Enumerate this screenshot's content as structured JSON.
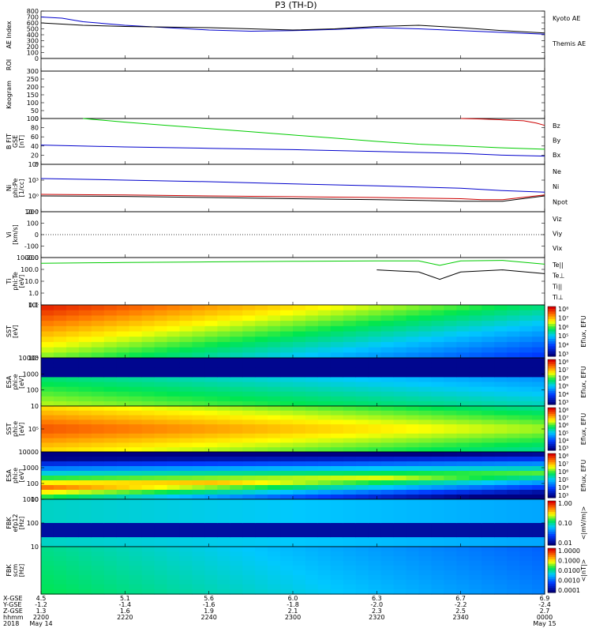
{
  "title": "P3 (TH-D)",
  "colors": {
    "black": "#000000",
    "blue": "#0000cc",
    "green": "#00cc00",
    "red": "#cc0000",
    "yellow": "#ffff00"
  },
  "chart_data": {
    "type": "line",
    "time_axis": {
      "ticks": [
        "2200",
        "2220",
        "2240",
        "2300",
        "2320",
        "2340",
        "0000"
      ],
      "start": "2018-05-14 22:00",
      "end": "2018-05-15 00:00",
      "row_labels": [
        "X-GSE",
        "Y-GSE",
        "Z-GSE",
        "hhmm",
        "2018"
      ],
      "rows": [
        [
          "4.5",
          "5.1",
          "5.6",
          "6.0",
          "6.3",
          "6.7",
          "6.9"
        ],
        [
          "-1.2",
          "-1.4",
          "-1.6",
          "-1.8",
          "-2.0",
          "-2.2",
          "-2.4"
        ],
        [
          "1.3",
          "1.6",
          "1.9",
          "2.1",
          "2.3",
          "2.5",
          "2.7"
        ],
        [
          "2200",
          "2220",
          "2240",
          "2300",
          "2320",
          "2340",
          "0000"
        ],
        [
          "May 14",
          "",
          "",
          "",
          "",
          "",
          "May 15"
        ]
      ]
    },
    "panels": [
      {
        "id": "ae",
        "ylabel": "AE Index",
        "ylim": [
          0,
          800
        ],
        "yticks": [
          "0",
          "100",
          "200",
          "300",
          "400",
          "500",
          "600",
          "700",
          "800"
        ],
        "legend": [
          "Kyoto AE",
          "Themis AE"
        ],
        "series": [
          {
            "name": "Kyoto AE",
            "color": "#0000cc",
            "t": [
              0,
              5,
              10,
              20,
              30,
              40,
              50,
              60,
              70,
              80,
              90,
              100,
              110,
              120
            ],
            "values": [
              700,
              680,
              620,
              560,
              520,
              480,
              460,
              470,
              490,
              520,
              500,
              470,
              440,
              410
            ]
          },
          {
            "name": "Themis AE",
            "color": "#000000",
            "t": [
              0,
              5,
              10,
              20,
              30,
              40,
              50,
              60,
              70,
              80,
              90,
              100,
              110,
              120
            ],
            "values": [
              600,
              580,
              560,
              540,
              530,
              520,
              500,
              480,
              500,
              540,
              560,
              520,
              470,
              430
            ]
          }
        ]
      },
      {
        "id": "roi",
        "ylabel": "ROI",
        "ylim": [
          0,
          1
        ],
        "yticks": [],
        "series": []
      },
      {
        "id": "keogram",
        "ylabel": "Keogram",
        "ylim": [
          0,
          300
        ],
        "yticks": [
          "0",
          "50",
          "100",
          "150",
          "200",
          "250",
          "300"
        ],
        "series": []
      },
      {
        "id": "bfit",
        "ylabel": "B FIT\nGSE\n[nT]",
        "ylim": [
          0,
          100
        ],
        "yticks": [
          "0",
          "20",
          "40",
          "60",
          "80",
          "100"
        ],
        "legend": [
          "Bz",
          "By",
          "Bx"
        ],
        "series": [
          {
            "name": "Bz",
            "color": "#cc0000",
            "t": [
              100,
              105,
              110,
              115,
              118,
              120
            ],
            "values": [
              100,
              99,
              97,
              95,
              90,
              85
            ]
          },
          {
            "name": "By",
            "color": "#00cc00",
            "t": [
              10,
              20,
              30,
              40,
              50,
              60,
              70,
              80,
              90,
              100,
              110,
              120
            ],
            "values": [
              100,
              92,
              85,
              78,
              71,
              64,
              57,
              50,
              44,
              40,
              36,
              33
            ]
          },
          {
            "name": "Bx",
            "color": "#0000cc",
            "t": [
              0,
              20,
              40,
              60,
              80,
              100,
              110,
              120
            ],
            "values": [
              42,
              38,
              35,
              32,
              28,
              24,
              20,
              18
            ]
          }
        ]
      },
      {
        "id": "density",
        "ylabel": "Ni\nphi:Pe\n[1/cc]",
        "log": true,
        "ylim": [
          0.001,
          1000000
        ],
        "yticks": [
          "10⁻³",
          "10⁰",
          "10³",
          "10⁶"
        ],
        "legend": [
          "Ne",
          "Ni",
          "Npot"
        ],
        "series": [
          {
            "name": "Ne",
            "color": "#cc0000",
            "t": [
              0,
              20,
              40,
              60,
              80,
              100,
              105,
              110,
              120
            ],
            "values": [
              2,
              1.5,
              1.0,
              0.7,
              0.5,
              0.3,
              0.2,
              0.2,
              1.5
            ]
          },
          {
            "name": "Ni",
            "color": "#0000cc",
            "t": [
              0,
              20,
              40,
              60,
              80,
              100,
              110,
              120
            ],
            "values": [
              2000,
              1000,
              500,
              200,
              80,
              30,
              10,
              5
            ]
          },
          {
            "name": "Npot",
            "color": "#000000",
            "t": [
              0,
              20,
              40,
              60,
              80,
              100,
              110,
              120
            ],
            "values": [
              1.0,
              0.8,
              0.5,
              0.3,
              0.2,
              0.1,
              0.1,
              1
            ]
          }
        ]
      },
      {
        "id": "velocity",
        "ylabel": "Vi\n[km/s]",
        "ylim": [
          -300,
          300
        ],
        "yticks": [
          "-200",
          "-100",
          "0",
          "100",
          "200"
        ],
        "legend": [
          "Viz",
          "Viy",
          "Vix"
        ],
        "zero_line": true,
        "series": []
      },
      {
        "id": "temperature",
        "ylabel": "Ti\nphi:Te\n[eV]",
        "log": true,
        "ylim": [
          0.1,
          10000
        ],
        "yticks": [
          "0.1",
          "1.0",
          "10.0",
          "100.0",
          "1000.0"
        ],
        "legend": [
          "Te||",
          "Te⊥",
          "Ti||",
          "Ti⊥"
        ],
        "series": [
          {
            "name": "Te||",
            "color": "#00cc00",
            "t": [
              0,
              20,
              40,
              60,
              80,
              90,
              95,
              100,
              110,
              120
            ],
            "values": [
              2500,
              3000,
              3500,
              4000,
              4500,
              4500,
              1500,
              4500,
              5000,
              2000
            ]
          },
          {
            "name": "Ti||",
            "color": "#000000",
            "t": [
              80,
              90,
              95,
              100,
              110,
              120
            ],
            "values": [
              500,
              300,
              50,
              300,
              500,
              200
            ]
          }
        ]
      },
      {
        "id": "sst1",
        "ylabel": "SST\n[eV]",
        "type": "heatmap",
        "yticks": [
          "10⁴",
          "10⁵"
        ],
        "colorbar_label": "Eflux, EFU",
        "colorbar_ticks": [
          "10⁸",
          "10⁷",
          "10⁶",
          "10⁵",
          "10⁴",
          "10³"
        ]
      },
      {
        "id": "esa1",
        "ylabel": "ESA\nphi:e\n[eV]",
        "type": "heatmap",
        "yticks": [
          "10",
          "100",
          "1000",
          "10000"
        ],
        "colorbar_label": "Eflux, EFU",
        "colorbar_ticks": [
          "10⁸",
          "10⁷",
          "10⁶",
          "10⁵",
          "10⁴",
          "10³"
        ]
      },
      {
        "id": "sst2",
        "ylabel": "SST\nphi:e\n[eV]",
        "type": "heatmap",
        "yticks": [
          "10⁵"
        ],
        "colorbar_label": "Eflux, EFU",
        "colorbar_ticks": [
          "10⁸",
          "10⁷",
          "10⁶",
          "10⁵",
          "10⁴",
          "10³"
        ]
      },
      {
        "id": "esa2",
        "ylabel": "ESA\nphi:e\n[eV]",
        "type": "heatmap",
        "yticks": [
          "10",
          "100",
          "1000",
          "10000"
        ],
        "colorbar_label": "Eflux, EFU",
        "colorbar_ticks": [
          "10⁸",
          "10⁷",
          "10⁶",
          "10⁵",
          "10⁴",
          "10³"
        ]
      },
      {
        "id": "fbk1",
        "ylabel": "FBK\nefp12\n[Hz]",
        "type": "heatmap",
        "yticks": [
          "10",
          "100",
          "1000"
        ],
        "colorbar_label": "<|mV/m|>",
        "colorbar_ticks": [
          "1.00",
          "0.10",
          "0.01"
        ]
      },
      {
        "id": "fbk2",
        "ylabel": "FBK\nscm\n[Hz]",
        "type": "heatmap",
        "yticks": [],
        "colorbar_label": "<|nT|>",
        "colorbar_ticks": [
          "1.0000",
          "0.1000",
          "0.0100",
          "0.0010",
          "0.0001"
        ]
      }
    ]
  }
}
